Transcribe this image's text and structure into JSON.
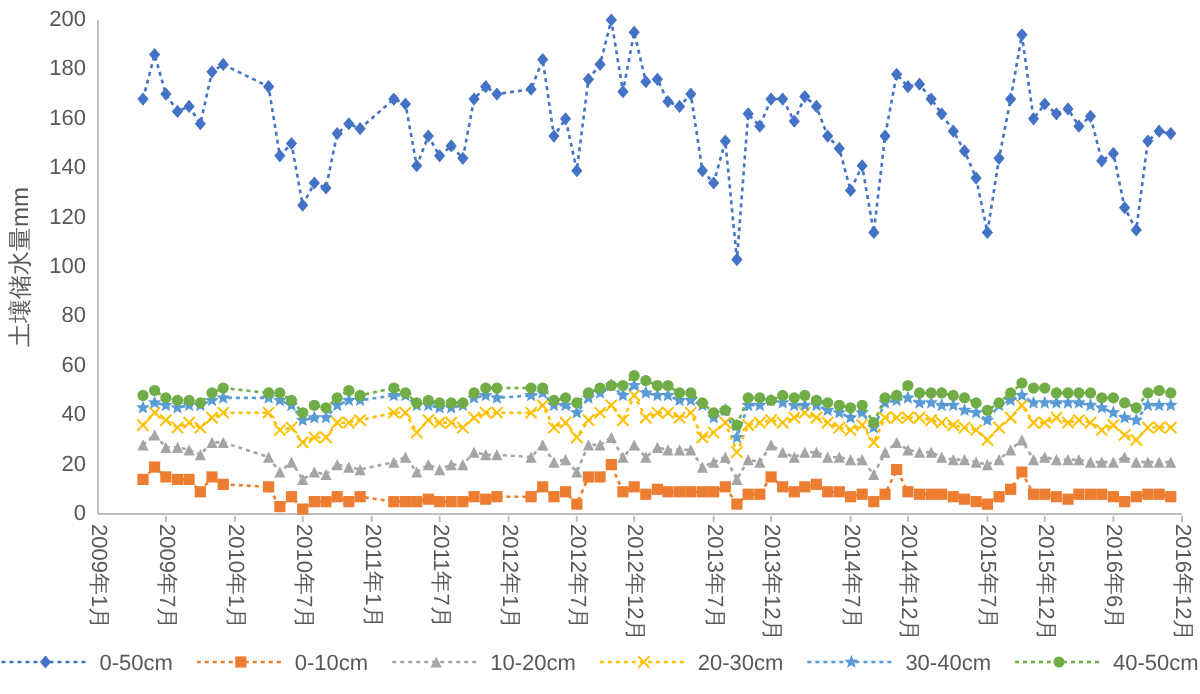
{
  "chart_data": {
    "type": "line",
    "ylabel": "土壤储水量mm",
    "x": [
      "2009-05",
      "2009-06",
      "2009-07",
      "2009-08",
      "2009-09",
      "2009-10",
      "2009-11",
      "2009-12",
      "2010-04",
      "2010-05",
      "2010-06",
      "2010-07",
      "2010-08",
      "2010-09",
      "2010-10",
      "2010-11",
      "2010-12",
      "2011-03",
      "2011-04",
      "2011-05",
      "2011-06",
      "2011-07",
      "2011-08",
      "2011-09",
      "2011-10",
      "2011-11",
      "2011-12",
      "2012-03",
      "2012-04",
      "2012-05",
      "2012-06",
      "2012-07",
      "2012-08",
      "2012-09",
      "2012-10",
      "2012-11",
      "2012-12",
      "2013-01",
      "2013-02",
      "2013-03",
      "2013-04",
      "2013-05",
      "2013-06",
      "2013-07",
      "2013-08",
      "2013-09",
      "2013-10",
      "2013-11",
      "2013-12",
      "2014-01",
      "2014-02",
      "2014-03",
      "2014-04",
      "2014-05",
      "2014-06",
      "2014-07",
      "2014-08",
      "2014-09",
      "2014-10",
      "2014-11",
      "2014-12",
      "2015-01",
      "2015-02",
      "2015-03",
      "2015-04",
      "2015-05",
      "2015-06",
      "2015-07",
      "2015-08",
      "2015-09",
      "2015-10",
      "2015-11",
      "2015-12",
      "2016-01",
      "2016-02",
      "2016-03",
      "2016-04",
      "2016-05",
      "2016-06",
      "2016-07",
      "2016-08",
      "2016-09",
      "2016-10",
      "2016-11"
    ],
    "xlim": [
      "2009-01",
      "2016-12"
    ],
    "xticks": [
      {
        "value": "2009-01",
        "label": "2009年1月"
      },
      {
        "value": "2009-07",
        "label": "2009年7月"
      },
      {
        "value": "2010-01",
        "label": "2010年1月"
      },
      {
        "value": "2010-07",
        "label": "2010年7月"
      },
      {
        "value": "2011-01",
        "label": "2011年1月"
      },
      {
        "value": "2011-07",
        "label": "2011年7月"
      },
      {
        "value": "2012-01",
        "label": "2012年1月"
      },
      {
        "value": "2012-07",
        "label": "2012年7月"
      },
      {
        "value": "2012-12",
        "label": "2012年12月"
      },
      {
        "value": "2013-07",
        "label": "2013年7月"
      },
      {
        "value": "2013-12",
        "label": "2013年12月"
      },
      {
        "value": "2014-07",
        "label": "2014年7月"
      },
      {
        "value": "2014-12",
        "label": "2014年12月"
      },
      {
        "value": "2015-07",
        "label": "2015年7月"
      },
      {
        "value": "2015-12",
        "label": "2015年12月"
      },
      {
        "value": "2016-06",
        "label": "2016年6月"
      },
      {
        "value": "2016-12",
        "label": "2016年12月"
      }
    ],
    "ylim": [
      0,
      200
    ],
    "yticks": [
      0,
      20,
      40,
      60,
      80,
      100,
      120,
      140,
      160,
      180,
      200
    ],
    "legend": "bottom",
    "line_style": "dotted",
    "series": [
      {
        "name": "0-50cm",
        "color": "#4472c4",
        "marker": "diamond",
        "values": [
          168,
          186,
          170,
          163,
          165,
          158,
          179,
          182,
          173,
          145,
          150,
          125,
          134,
          132,
          154,
          158,
          156,
          168,
          166,
          141,
          153,
          145,
          149,
          144,
          168,
          173,
          170,
          172,
          184,
          153,
          160,
          139,
          176,
          182,
          200,
          171,
          195,
          175,
          176,
          167,
          165,
          170,
          139,
          134,
          151,
          103,
          162,
          157,
          168,
          168,
          159,
          169,
          165,
          153,
          148,
          131,
          141,
          114,
          153,
          178,
          173,
          174,
          168,
          162,
          155,
          147,
          136,
          114,
          144,
          168,
          194,
          160,
          166,
          162,
          164,
          157,
          161,
          143,
          146,
          124,
          115,
          151,
          155,
          154
        ]
      },
      {
        "name": "0-10cm",
        "color": "#ed7d31",
        "marker": "square",
        "values": [
          14,
          19,
          15,
          14,
          14,
          9,
          15,
          12,
          11,
          3,
          7,
          2,
          5,
          5,
          7,
          5,
          7,
          5,
          5,
          5,
          6,
          5,
          5,
          5,
          7,
          6,
          7,
          7,
          11,
          7,
          9,
          4,
          15,
          15,
          20,
          9,
          11,
          8,
          10,
          9,
          9,
          9,
          9,
          9,
          11,
          4,
          8,
          8,
          15,
          11,
          9,
          11,
          12,
          9,
          9,
          7,
          8,
          5,
          8,
          18,
          9,
          8,
          8,
          8,
          7,
          6,
          5,
          4,
          7,
          10,
          17,
          8,
          8,
          7,
          6,
          8,
          8,
          8,
          7,
          5,
          7,
          8,
          8,
          7
        ]
      },
      {
        "name": "10-20cm",
        "color": "#a5a5a5",
        "marker": "triangle",
        "values": [
          28,
          32,
          27,
          27,
          26,
          24,
          29,
          29,
          23,
          17,
          21,
          14,
          17,
          16,
          20,
          19,
          18,
          21,
          23,
          17,
          20,
          18,
          20,
          20,
          25,
          24,
          24,
          23,
          28,
          21,
          22,
          17,
          28,
          28,
          31,
          23,
          28,
          23,
          27,
          26,
          26,
          26,
          19,
          21,
          23,
          14,
          22,
          21,
          28,
          25,
          23,
          25,
          25,
          23,
          23,
          22,
          22,
          16,
          25,
          29,
          26,
          25,
          25,
          23,
          22,
          22,
          21,
          20,
          22,
          26,
          30,
          22,
          23,
          22,
          22,
          22,
          21,
          21,
          21,
          23,
          21,
          21,
          21,
          21
        ]
      },
      {
        "name": "20-30cm",
        "color": "#ffc000",
        "marker": "cross",
        "values": [
          36,
          41,
          38,
          35,
          37,
          35,
          39,
          41,
          41,
          34,
          35,
          29,
          31,
          31,
          37,
          37,
          38,
          41,
          41,
          33,
          38,
          37,
          37,
          35,
          39,
          41,
          41,
          41,
          44,
          35,
          37,
          31,
          38,
          41,
          44,
          38,
          48,
          39,
          41,
          41,
          39,
          41,
          31,
          33,
          37,
          25,
          36,
          37,
          38,
          37,
          39,
          41,
          39,
          37,
          35,
          34,
          36,
          29,
          39,
          39,
          39,
          39,
          38,
          37,
          36,
          35,
          34,
          30,
          35,
          39,
          44,
          37,
          37,
          39,
          37,
          38,
          37,
          34,
          36,
          32,
          30,
          35,
          35,
          35
        ]
      },
      {
        "name": "30-40cm",
        "color": "#5b9bd5",
        "marker": "star",
        "values": [
          43,
          45,
          44,
          43,
          44,
          44,
          46,
          47,
          47,
          46,
          44,
          38,
          39,
          39,
          44,
          46,
          46,
          48,
          48,
          44,
          44,
          43,
          43,
          44,
          47,
          48,
          47,
          48,
          49,
          44,
          44,
          41,
          47,
          49,
          52,
          48,
          52,
          49,
          48,
          48,
          46,
          46,
          44,
          39,
          42,
          31,
          44,
          44,
          46,
          45,
          44,
          44,
          44,
          42,
          41,
          39,
          41,
          35,
          45,
          46,
          47,
          45,
          45,
          44,
          44,
          42,
          41,
          38,
          44,
          46,
          48,
          45,
          45,
          45,
          45,
          45,
          44,
          43,
          41,
          39,
          38,
          44,
          44,
          44
        ]
      },
      {
        "name": "40-50cm",
        "color": "#70ad47",
        "marker": "circle",
        "values": [
          48,
          50,
          47,
          46,
          46,
          45,
          49,
          51,
          49,
          49,
          46,
          41,
          44,
          43,
          47,
          50,
          48,
          51,
          49,
          45,
          46,
          45,
          45,
          45,
          49,
          51,
          51,
          51,
          51,
          46,
          47,
          45,
          49,
          51,
          52,
          52,
          56,
          54,
          52,
          52,
          49,
          49,
          45,
          41,
          42,
          36,
          47,
          47,
          46,
          48,
          47,
          48,
          46,
          45,
          44,
          43,
          44,
          37,
          47,
          48,
          52,
          49,
          49,
          49,
          48,
          47,
          45,
          42,
          45,
          49,
          53,
          51,
          51,
          49,
          49,
          49,
          49,
          47,
          47,
          45,
          43,
          49,
          50,
          49
        ]
      }
    ]
  }
}
